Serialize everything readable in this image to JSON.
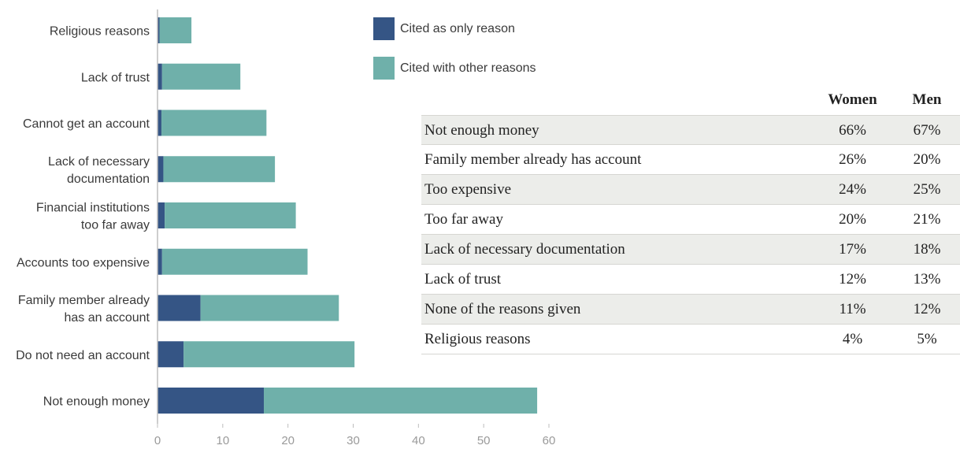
{
  "colors": {
    "only_reason": "#355585",
    "other_reasons": "#6fb0aa",
    "axis": "#bdbdbd",
    "row_shade": "#ecedea"
  },
  "legend": [
    {
      "label": "Cited as only reason",
      "color": "#355585"
    },
    {
      "label": "Cited with other reasons",
      "color": "#6fb0aa"
    }
  ],
  "chart_data": [
    {
      "type": "bar",
      "orientation": "horizontal",
      "stacked": true,
      "categories": [
        "Religious reasons",
        "Lack of trust",
        "Cannot get an account",
        "Lack of necessary documentation",
        "Financial institutions too far away",
        "Accounts too expensive",
        "Family member already has an account",
        "Do not need an account",
        "Not enough money"
      ],
      "category_lines": [
        [
          "Religious reasons"
        ],
        [
          "Lack of trust"
        ],
        [
          "Cannot get an account"
        ],
        [
          "Lack of necessary",
          "documentation"
        ],
        [
          "Financial institutions",
          "too far away"
        ],
        [
          "Accounts too expensive"
        ],
        [
          "Family member already",
          "has an account"
        ],
        [
          "Do not need an account"
        ],
        [
          "Not enough money"
        ]
      ],
      "series": [
        {
          "name": "Cited as only reason",
          "values": [
            0.3,
            0.7,
            0.6,
            0.9,
            1.1,
            0.7,
            6.6,
            4.0,
            16.3
          ]
        },
        {
          "name": "Cited with other reasons",
          "values": [
            4.9,
            12.0,
            16.1,
            17.1,
            20.1,
            22.3,
            21.2,
            26.2,
            41.9
          ]
        }
      ],
      "xlim": [
        0,
        60
      ],
      "xticks": [
        0,
        10,
        20,
        30,
        40,
        50,
        60
      ],
      "grid": false,
      "legend_position": "top-right"
    },
    {
      "type": "table",
      "columns": [
        "",
        "Women",
        "Men"
      ],
      "rows": [
        {
          "reason": "Not enough money",
          "women": "66%",
          "men": "67%"
        },
        {
          "reason": "Family member already has account",
          "women": "26%",
          "men": "20%"
        },
        {
          "reason": "Too expensive",
          "women": "24%",
          "men": "25%"
        },
        {
          "reason": "Too far away",
          "women": "20%",
          "men": "21%"
        },
        {
          "reason": "Lack of necessary documentation",
          "women": "17%",
          "men": "18%"
        },
        {
          "reason": "Lack of trust",
          "women": "12%",
          "men": "13%"
        },
        {
          "reason": "None of the reasons given",
          "women": "11%",
          "men": "12%"
        },
        {
          "reason": "Religious reasons",
          "women": "4%",
          "men": "5%"
        }
      ]
    }
  ]
}
